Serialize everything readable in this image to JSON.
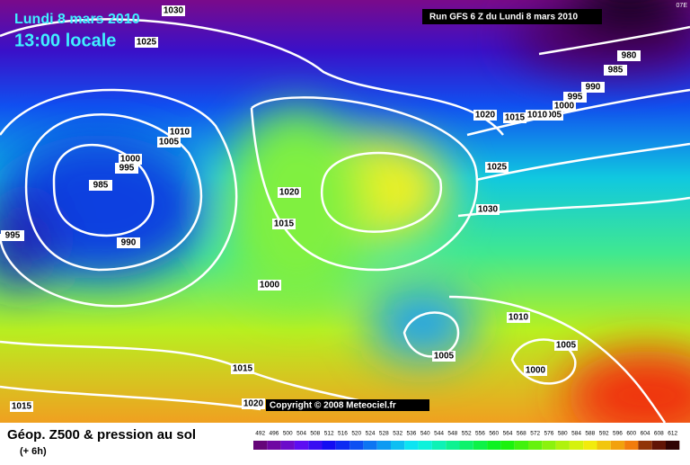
{
  "header": {
    "date": "Lundi 8 mars 2010",
    "time": "13:00 locale",
    "run_info": "Run GFS 6 Z du Lundi 8 mars 2010",
    "corner": "07E"
  },
  "copyright": "Copyright © 2008 Meteociel.fr",
  "footer": {
    "title": "Géop. Z500 & pression au sol",
    "subtitle": "(+ 6h)"
  },
  "legend": {
    "labels": [
      492,
      496,
      500,
      504,
      508,
      512,
      516,
      520,
      524,
      528,
      532,
      536,
      540,
      544,
      548,
      552,
      556,
      560,
      564,
      568,
      572,
      576,
      580,
      584,
      588,
      592,
      596,
      600,
      604,
      608,
      612
    ]
  },
  "isobar_labels": [
    "1030",
    "1025",
    "980",
    "985",
    "990",
    "995",
    "1000",
    "1005",
    "1010",
    "1015",
    "1020",
    "1010",
    "1005",
    "1000",
    "995",
    "985",
    "1025",
    "1020",
    "1015",
    "1030",
    "995",
    "990",
    "1000",
    "1010",
    "1005",
    "1005",
    "1000",
    "1015",
    "1020",
    "1015"
  ]
}
